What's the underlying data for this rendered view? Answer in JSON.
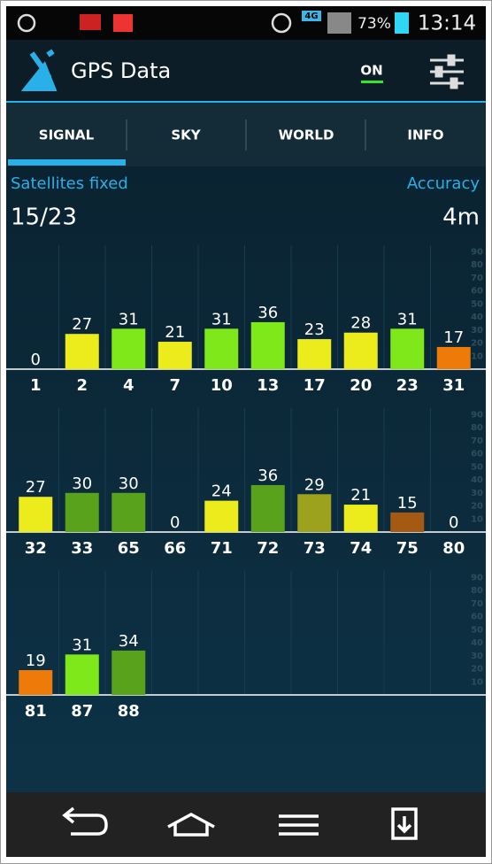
{
  "status_bar": {
    "network": "4G",
    "battery": "73%",
    "time": "13:14"
  },
  "app_bar": {
    "title": "GPS Data",
    "toggle": "ON"
  },
  "tabs": [
    "SIGNAL",
    "SKY",
    "WORLD",
    "INFO"
  ],
  "summary": {
    "fixed_label": "Satellites fixed",
    "fixed_value": "15/23",
    "accuracy_label": "Accuracy",
    "accuracy_value": "4m"
  },
  "chart_data": [
    {
      "type": "bar",
      "categories": [
        "1",
        "2",
        "4",
        "7",
        "10",
        "13",
        "17",
        "20",
        "23",
        "31"
      ],
      "values": [
        0,
        27,
        31,
        21,
        31,
        36,
        23,
        28,
        31,
        17
      ],
      "colors": [
        null,
        "#ecec1c",
        "#7ee81a",
        "#ecec1c",
        "#7ee81a",
        "#7ee81a",
        "#ecec1c",
        "#ecec1c",
        "#7ee81a",
        "#ee7a0a"
      ],
      "ylim": [
        0,
        95
      ],
      "yticks": [
        10,
        20,
        30,
        40,
        50,
        60,
        70,
        80,
        90
      ]
    },
    {
      "type": "bar",
      "categories": [
        "32",
        "33",
        "65",
        "66",
        "71",
        "72",
        "73",
        "74",
        "75",
        "80"
      ],
      "values": [
        27,
        30,
        30,
        0,
        24,
        36,
        29,
        21,
        15,
        0
      ],
      "colors": [
        "#ecec1c",
        "#58a21c",
        "#58a21c",
        null,
        "#ecec1c",
        "#58a21c",
        "#9ca21e",
        "#ecec1c",
        "#a45a12",
        null
      ],
      "ylim": [
        0,
        95
      ],
      "yticks": [
        10,
        20,
        30,
        40,
        50,
        60,
        70,
        80,
        90
      ]
    },
    {
      "type": "bar",
      "categories": [
        "81",
        "87",
        "88"
      ],
      "values": [
        19,
        31,
        34
      ],
      "colors": [
        "#ee7a0a",
        "#7ee81a",
        "#58a21c"
      ],
      "ylim": [
        0,
        95
      ],
      "yticks": [
        10,
        20,
        30,
        40,
        50,
        60,
        70,
        80,
        90
      ]
    }
  ]
}
